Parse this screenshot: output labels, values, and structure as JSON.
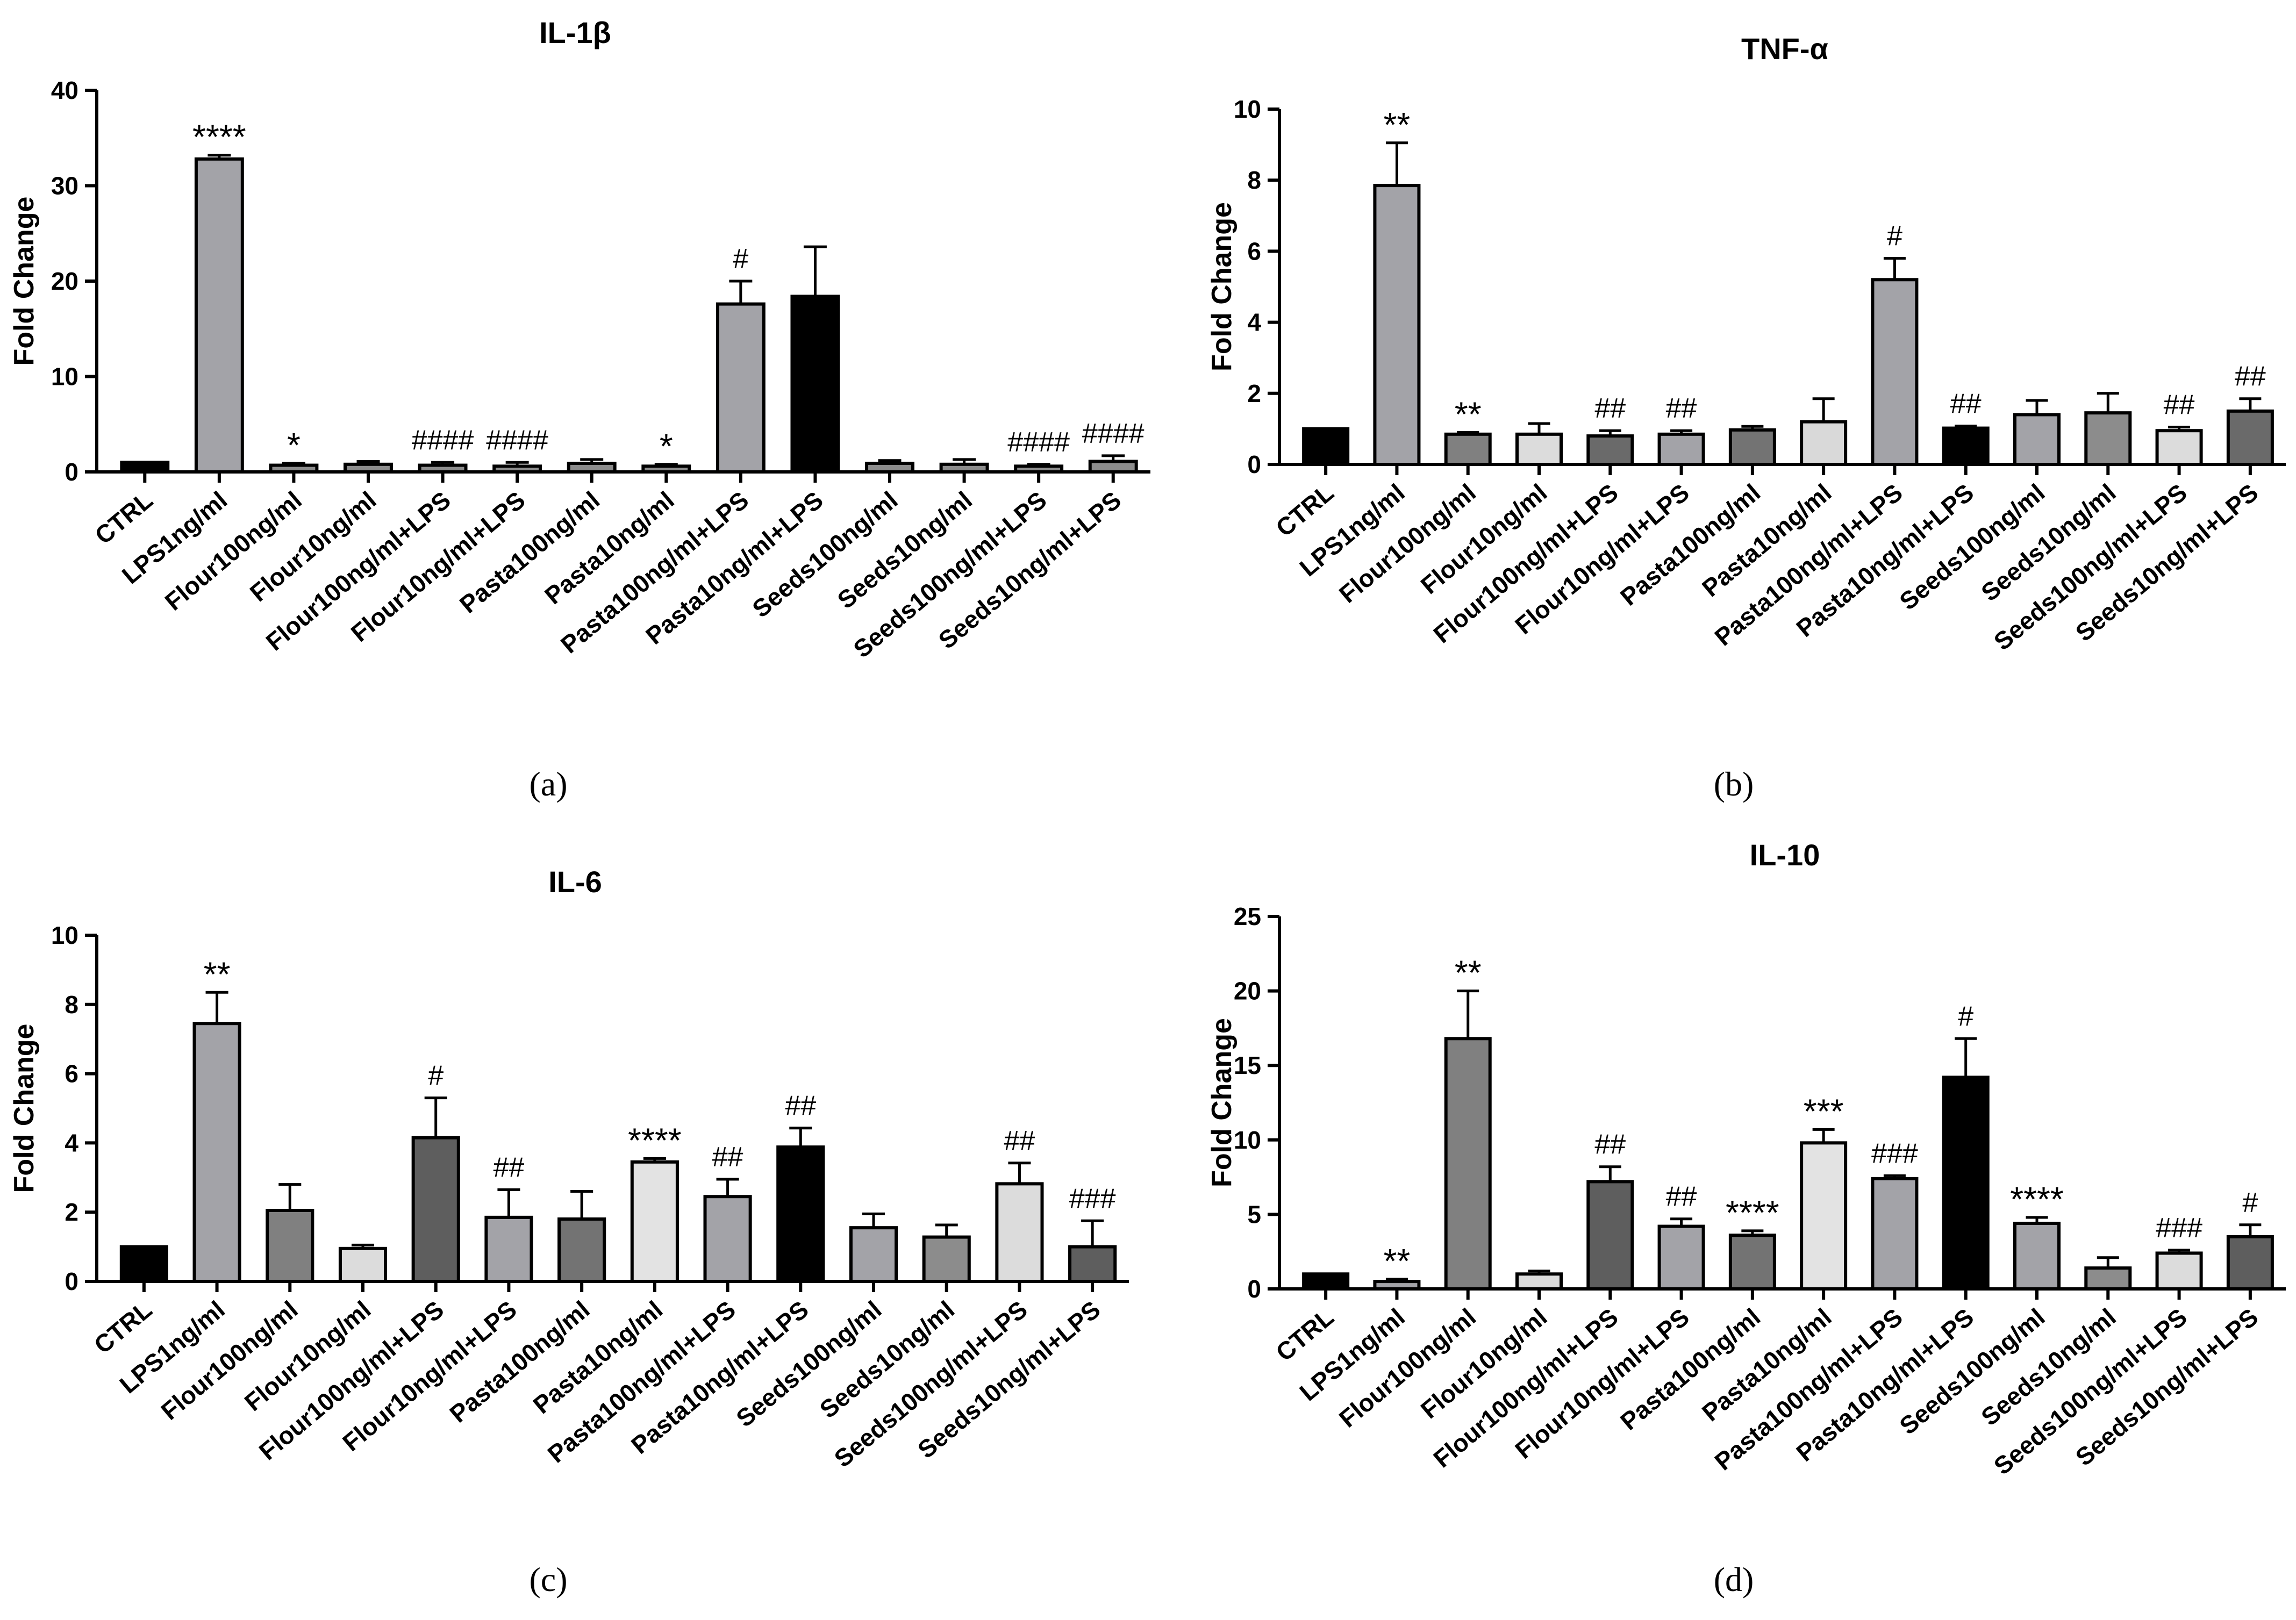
{
  "categories": [
    "CTRL",
    "LPS1ng/ml",
    "Flour100ng/ml",
    "Flour10ng/ml",
    "Flour100ng/ml+LPS",
    "Flour10ng/ml+LPS",
    "Pasta100ng/ml",
    "Pasta10ng/ml",
    "Pasta100ng/ml+LPS",
    "Pasta10ng/ml+LPS",
    "Seeds100ng/ml",
    "Seeds10ng/ml",
    "Seeds100ng/ml+LPS",
    "Seeds10ng/ml+LPS"
  ],
  "y_axis_label": "Fold Change",
  "chart_data": [
    {
      "type": "bar",
      "panel": "(a)",
      "title": "IL-1β",
      "ylabel": "Fold Change",
      "ylim": [
        0,
        40
      ],
      "yticks": [
        0,
        10,
        20,
        30,
        40
      ],
      "categories": [
        "CTRL",
        "LPS1ng/ml",
        "Flour100ng/ml",
        "Flour10ng/ml",
        "Flour100ng/ml+LPS",
        "Flour10ng/ml+LPS",
        "Pasta100ng/ml",
        "Pasta10ng/ml",
        "Pasta100ng/ml+LPS",
        "Pasta10ng/ml+LPS",
        "Seeds100ng/ml",
        "Seeds10ng/ml",
        "Seeds100ng/ml+LPS",
        "Seeds10ng/ml+LPS"
      ],
      "values": [
        1,
        32.8,
        0.7,
        0.8,
        0.7,
        0.6,
        0.9,
        0.6,
        17.6,
        18.4,
        0.9,
        0.8,
        0.6,
        1.1
      ],
      "errors": [
        0,
        0.4,
        0.2,
        0.3,
        0.3,
        0.4,
        0.4,
        0.2,
        2.4,
        5.2,
        0.3,
        0.5,
        0.2,
        0.6
      ],
      "colors": [
        "#000000",
        "#a3a3a8",
        "#8c8c8c",
        "#8c8c8c",
        "#8c8c8c",
        "#8c8c8c",
        "#8c8c8c",
        "#8c8c8c",
        "#a3a3a8",
        "#000000",
        "#8c8c8c",
        "#8c8c8c",
        "#8c8c8c",
        "#8c8c8c"
      ],
      "annotations": [
        "",
        "****",
        "*",
        "",
        "####",
        "####",
        "",
        "*",
        "#",
        "",
        "",
        "",
        "####",
        "####"
      ]
    },
    {
      "type": "bar",
      "panel": "(b)",
      "title": "TNF-α",
      "ylabel": "Fold Change",
      "ylim": [
        0,
        10
      ],
      "yticks": [
        0,
        2,
        4,
        6,
        8,
        10
      ],
      "categories": [
        "CTRL",
        "LPS1ng/ml",
        "Flour100ng/ml",
        "Flour10ng/ml",
        "Flour100ng/ml+LPS",
        "Flour10ng/ml+LPS",
        "Pasta100ng/ml",
        "Pasta10ng/ml",
        "Pasta100ng/ml+LPS",
        "Pasta10ng/ml+LPS",
        "Seeds100ng/ml",
        "Seeds10ng/ml",
        "Seeds100ng/ml+LPS",
        "Seeds10ng/ml+LPS"
      ],
      "values": [
        1,
        7.85,
        0.85,
        0.85,
        0.8,
        0.85,
        0.97,
        1.2,
        5.2,
        1.02,
        1.4,
        1.45,
        0.95,
        1.5
      ],
      "errors": [
        0,
        1.2,
        0.05,
        0.3,
        0.15,
        0.1,
        0.1,
        0.65,
        0.6,
        0.06,
        0.4,
        0.55,
        0.1,
        0.35
      ],
      "colors": [
        "#000000",
        "#a3a3a8",
        "#808080",
        "#dcdcdc",
        "#6a6a6a",
        "#a3a3a8",
        "#737373",
        "#d9d9d9",
        "#a3a3a8",
        "#000000",
        "#a3a3a8",
        "#8c8c8c",
        "#dcdcdc",
        "#6a6a6a"
      ],
      "annotations": [
        "",
        "**",
        "**",
        "",
        "##",
        "##",
        "",
        "",
        "#",
        "##",
        "",
        "",
        "##",
        "##"
      ]
    },
    {
      "type": "bar",
      "panel": "(c)",
      "title": "IL-6",
      "ylabel": "Fold Change",
      "ylim": [
        0,
        10
      ],
      "yticks": [
        0,
        2,
        4,
        6,
        8,
        10
      ],
      "categories": [
        "CTRL",
        "LPS1ng/ml",
        "Flour100ng/ml",
        "Flour10ng/ml",
        "Flour100ng/ml+LPS",
        "Flour10ng/ml+LPS",
        "Pasta100ng/ml",
        "Pasta10ng/ml",
        "Pasta100ng/ml+LPS",
        "Pasta10ng/ml+LPS",
        "Seeds100ng/ml",
        "Seeds10ng/ml",
        "Seeds100ng/ml+LPS",
        "Seeds10ng/ml+LPS"
      ],
      "values": [
        1,
        7.45,
        2.05,
        0.95,
        4.15,
        1.85,
        1.8,
        3.45,
        2.45,
        3.88,
        1.55,
        1.28,
        2.82,
        1.0
      ],
      "errors": [
        0,
        0.9,
        0.75,
        0.1,
        1.15,
        0.8,
        0.8,
        0.1,
        0.5,
        0.55,
        0.4,
        0.35,
        0.6,
        0.75
      ],
      "colors": [
        "#000000",
        "#a3a3a8",
        "#808080",
        "#dcdcdc",
        "#5e5e5e",
        "#a3a3a8",
        "#737373",
        "#e3e3e3",
        "#a3a3a8",
        "#000000",
        "#a3a3a8",
        "#8c8c8c",
        "#dcdcdc",
        "#5e5e5e"
      ],
      "annotations": [
        "",
        "**",
        "",
        "",
        "#",
        "##",
        "",
        "****",
        "##",
        "##",
        "",
        "",
        "##",
        "###"
      ]
    },
    {
      "type": "bar",
      "panel": "(d)",
      "title": "IL-10",
      "ylabel": "Fold Change",
      "ylim": [
        0,
        25
      ],
      "yticks": [
        0,
        5,
        10,
        15,
        20,
        25
      ],
      "categories": [
        "CTRL",
        "LPS1ng/ml",
        "Flour100ng/ml",
        "Flour10ng/ml",
        "Flour100ng/ml+LPS",
        "Flour10ng/ml+LPS",
        "Pasta100ng/ml",
        "Pasta10ng/ml",
        "Pasta100ng/ml+LPS",
        "Pasta10ng/ml+LPS",
        "Seeds100ng/ml",
        "Seeds10ng/ml",
        "Seeds100ng/ml+LPS",
        "Seeds10ng/ml+LPS"
      ],
      "values": [
        1,
        0.5,
        16.8,
        1.0,
        7.2,
        4.2,
        3.6,
        9.8,
        7.4,
        14.2,
        4.4,
        1.4,
        2.4,
        3.5
      ],
      "errors": [
        0,
        0.15,
        3.2,
        0.2,
        1.0,
        0.5,
        0.3,
        0.9,
        0.2,
        2.6,
        0.4,
        0.7,
        0.2,
        0.8
      ],
      "colors": [
        "#000000",
        "#a3a3a8",
        "#808080",
        "#dcdcdc",
        "#5e5e5e",
        "#a3a3a8",
        "#737373",
        "#e3e3e3",
        "#a3a3a8",
        "#000000",
        "#a3a3a8",
        "#8c8c8c",
        "#dcdcdc",
        "#5e5e5e"
      ],
      "annotations": [
        "",
        "**",
        "**",
        "",
        "##",
        "##",
        "****",
        "***",
        "###",
        "#",
        "****",
        "",
        "###",
        "#"
      ]
    }
  ]
}
